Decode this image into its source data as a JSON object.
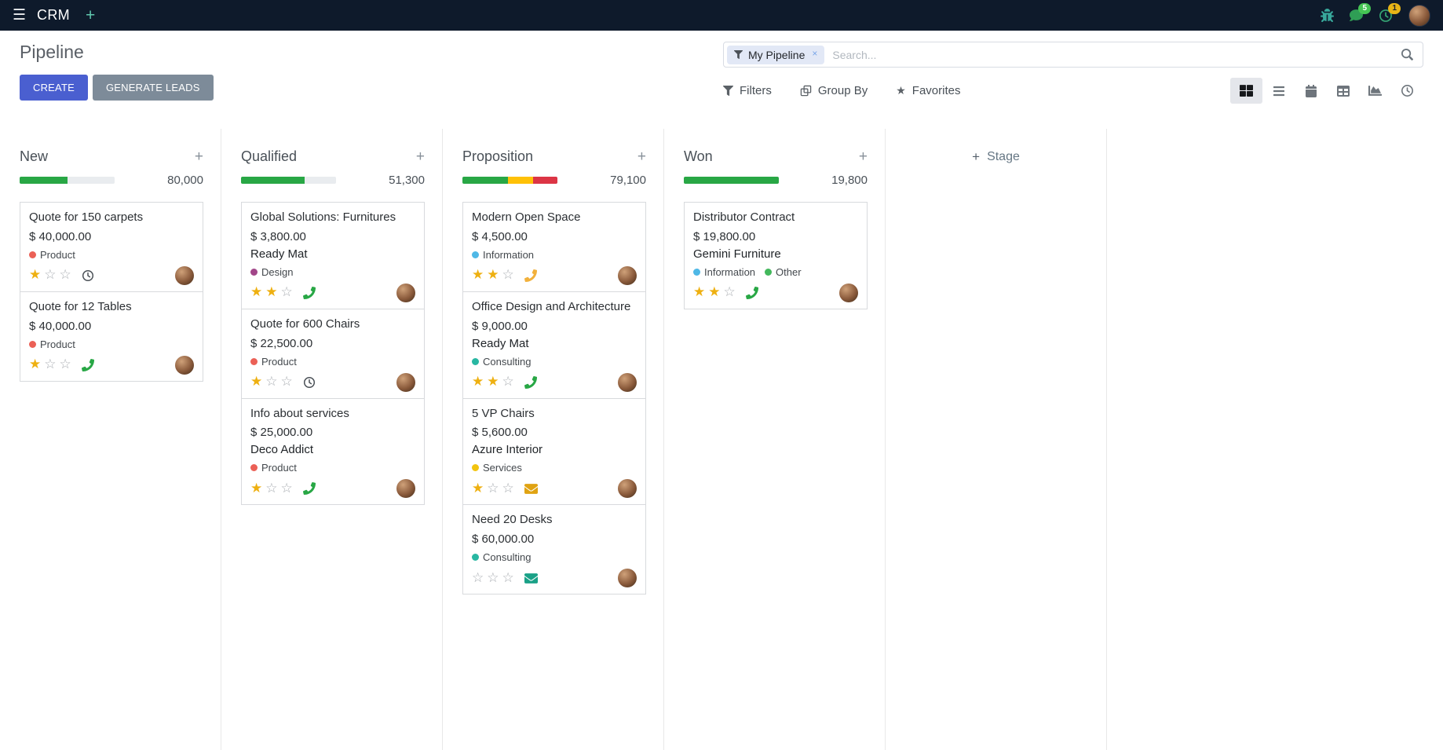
{
  "icons": {
    "menu": "☰",
    "plus": "+",
    "star_filled": "★",
    "star_empty": "☆",
    "close": "×"
  },
  "topbar": {
    "app_name": "CRM",
    "messages_count": "5",
    "activities_count": "1"
  },
  "control_panel": {
    "title": "Pipeline",
    "create_label": "CREATE",
    "generate_leads_label": "GENERATE LEADS",
    "search": {
      "facet_label": "My Pipeline",
      "placeholder": "Search..."
    },
    "menus": {
      "filters": "Filters",
      "group_by": "Group By",
      "favorites": "Favorites"
    }
  },
  "colors": {
    "primary": "#4a5fd0",
    "secondary": "#7d8b99",
    "progress_success": "#28a745",
    "progress_warning": "#ffc107",
    "progress_danger": "#dc3545",
    "star_gold": "#eeb011"
  },
  "kanban": {
    "add_stage_label": "Stage",
    "columns": [
      {
        "title": "New",
        "counter": "80,000",
        "progress": [
          {
            "color": "#28a745",
            "pct": 50
          }
        ],
        "cards": [
          {
            "title": "Quote for 150 carpets",
            "amount": "$ 40,000.00",
            "partner": "",
            "tags": [
              {
                "label": "Product",
                "color": "#eb6056"
              }
            ],
            "stars_filled": 1,
            "activity": {
              "type": "clock",
              "color": "#4b5157"
            }
          },
          {
            "title": "Quote for 12 Tables",
            "amount": "$ 40,000.00",
            "partner": "",
            "tags": [
              {
                "label": "Product",
                "color": "#eb6056"
              }
            ],
            "stars_filled": 1,
            "activity": {
              "type": "phone",
              "color": "#28a745"
            }
          }
        ]
      },
      {
        "title": "Qualified",
        "counter": "51,300",
        "progress": [
          {
            "color": "#28a745",
            "pct": 67
          }
        ],
        "cards": [
          {
            "title": "Global Solutions: Furnitures",
            "amount": "$ 3,800.00",
            "partner": "Ready Mat",
            "tags": [
              {
                "label": "Design",
                "color": "#a24689"
              }
            ],
            "stars_filled": 2,
            "activity": {
              "type": "phone",
              "color": "#28a745"
            }
          },
          {
            "title": "Quote for 600 Chairs",
            "amount": "$ 22,500.00",
            "partner": "",
            "tags": [
              {
                "label": "Product",
                "color": "#eb6056"
              }
            ],
            "stars_filled": 1,
            "activity": {
              "type": "clock",
              "color": "#4b5157"
            }
          },
          {
            "title": "Info about services",
            "amount": "$ 25,000.00",
            "partner": "Deco Addict",
            "tags": [
              {
                "label": "Product",
                "color": "#eb6056"
              }
            ],
            "stars_filled": 1,
            "activity": {
              "type": "phone",
              "color": "#28a745"
            }
          }
        ]
      },
      {
        "title": "Proposition",
        "counter": "79,100",
        "progress": [
          {
            "color": "#28a745",
            "pct": 48
          },
          {
            "color": "#ffc107",
            "pct": 26
          },
          {
            "color": "#dc3545",
            "pct": 26
          }
        ],
        "cards": [
          {
            "title": "Modern Open Space",
            "amount": "$ 4,500.00",
            "partner": "",
            "tags": [
              {
                "label": "Information",
                "color": "#4fb8e6"
              }
            ],
            "stars_filled": 2,
            "activity": {
              "type": "phone",
              "color": "#f2b13c"
            }
          },
          {
            "title": "Office Design and Architecture",
            "amount": "$ 9,000.00",
            "partner": "Ready Mat",
            "tags": [
              {
                "label": "Consulting",
                "color": "#28b7a2"
              }
            ],
            "stars_filled": 2,
            "activity": {
              "type": "phone",
              "color": "#28a745"
            }
          },
          {
            "title": "5 VP Chairs",
            "amount": "$ 5,600.00",
            "partner": "Azure Interior",
            "tags": [
              {
                "label": "Services",
                "color": "#f2c40f"
              }
            ],
            "stars_filled": 1,
            "activity": {
              "type": "envelope",
              "color": "#e0a312"
            }
          },
          {
            "title": "Need 20 Desks",
            "amount": "$ 60,000.00",
            "partner": "",
            "tags": [
              {
                "label": "Consulting",
                "color": "#28b7a2"
              }
            ],
            "stars_filled": 0,
            "activity": {
              "type": "envelope",
              "color": "#1aa187"
            }
          }
        ]
      },
      {
        "title": "Won",
        "counter": "19,800",
        "progress": [
          {
            "color": "#28a745",
            "pct": 100
          }
        ],
        "cards": [
          {
            "title": "Distributor Contract",
            "amount": "$ 19,800.00",
            "partner": "Gemini Furniture",
            "tags": [
              {
                "label": "Information",
                "color": "#4fb8e6"
              },
              {
                "label": "Other",
                "color": "#43b85c"
              }
            ],
            "stars_filled": 2,
            "activity": {
              "type": "phone",
              "color": "#28a745"
            }
          }
        ]
      }
    ]
  }
}
